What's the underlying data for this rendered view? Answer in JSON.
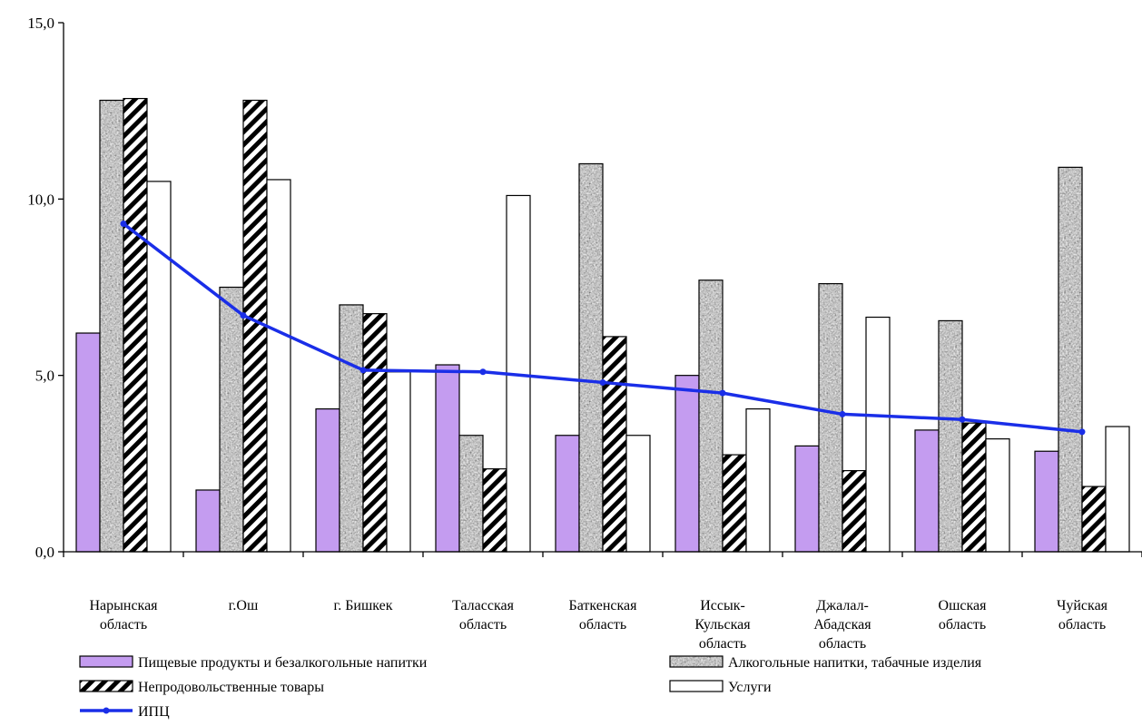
{
  "chart_data": {
    "type": "bar",
    "title": "",
    "xlabel": "",
    "ylabel": "",
    "ylim": [
      0,
      15
    ],
    "yticks": [
      0,
      5,
      10,
      15
    ],
    "ytick_labels": [
      "0,0",
      "5,0",
      "10,0",
      "15,0"
    ],
    "grid": false,
    "legend_position": "bottom",
    "categories": [
      [
        "Нарынская",
        "область"
      ],
      [
        "г.Ош"
      ],
      [
        "г. Бишкек"
      ],
      [
        "Таласская",
        "область"
      ],
      [
        "Баткенская",
        "область"
      ],
      [
        "Иссык-",
        "Кульская",
        "область"
      ],
      [
        "Джалал-",
        "Абадская",
        "область"
      ],
      [
        "Ошская",
        "область"
      ],
      [
        "Чуйская",
        "область"
      ]
    ],
    "series": [
      {
        "name": "Пищевые продукты и безалкогольные напитки",
        "kind": "bar",
        "fill": "solid",
        "color": "#c49cf0",
        "values": [
          6.2,
          1.75,
          4.05,
          5.3,
          3.3,
          5.0,
          3.0,
          3.45,
          2.85
        ]
      },
      {
        "name": "Алкогольные напитки, табачные изделия",
        "kind": "bar",
        "fill": "granite",
        "color": "#9a9a9a",
        "values": [
          12.8,
          7.5,
          7.0,
          3.3,
          11.0,
          7.7,
          7.6,
          6.55,
          10.9
        ]
      },
      {
        "name": "Непродовольственные товары",
        "kind": "bar",
        "fill": "hatch",
        "color": "#000000",
        "values": [
          12.85,
          12.8,
          6.75,
          2.35,
          6.1,
          2.75,
          2.3,
          3.65,
          1.85
        ]
      },
      {
        "name": "Услуги",
        "kind": "bar",
        "fill": "white",
        "color": "#ffffff",
        "values": [
          10.5,
          10.55,
          5.1,
          10.1,
          3.3,
          4.05,
          6.65,
          3.2,
          3.55
        ]
      },
      {
        "name": "ИПЦ",
        "kind": "line",
        "color": "#1a2ee8",
        "values": [
          9.3,
          6.7,
          5.15,
          5.1,
          4.8,
          4.5,
          3.9,
          3.75,
          3.4
        ]
      }
    ]
  }
}
